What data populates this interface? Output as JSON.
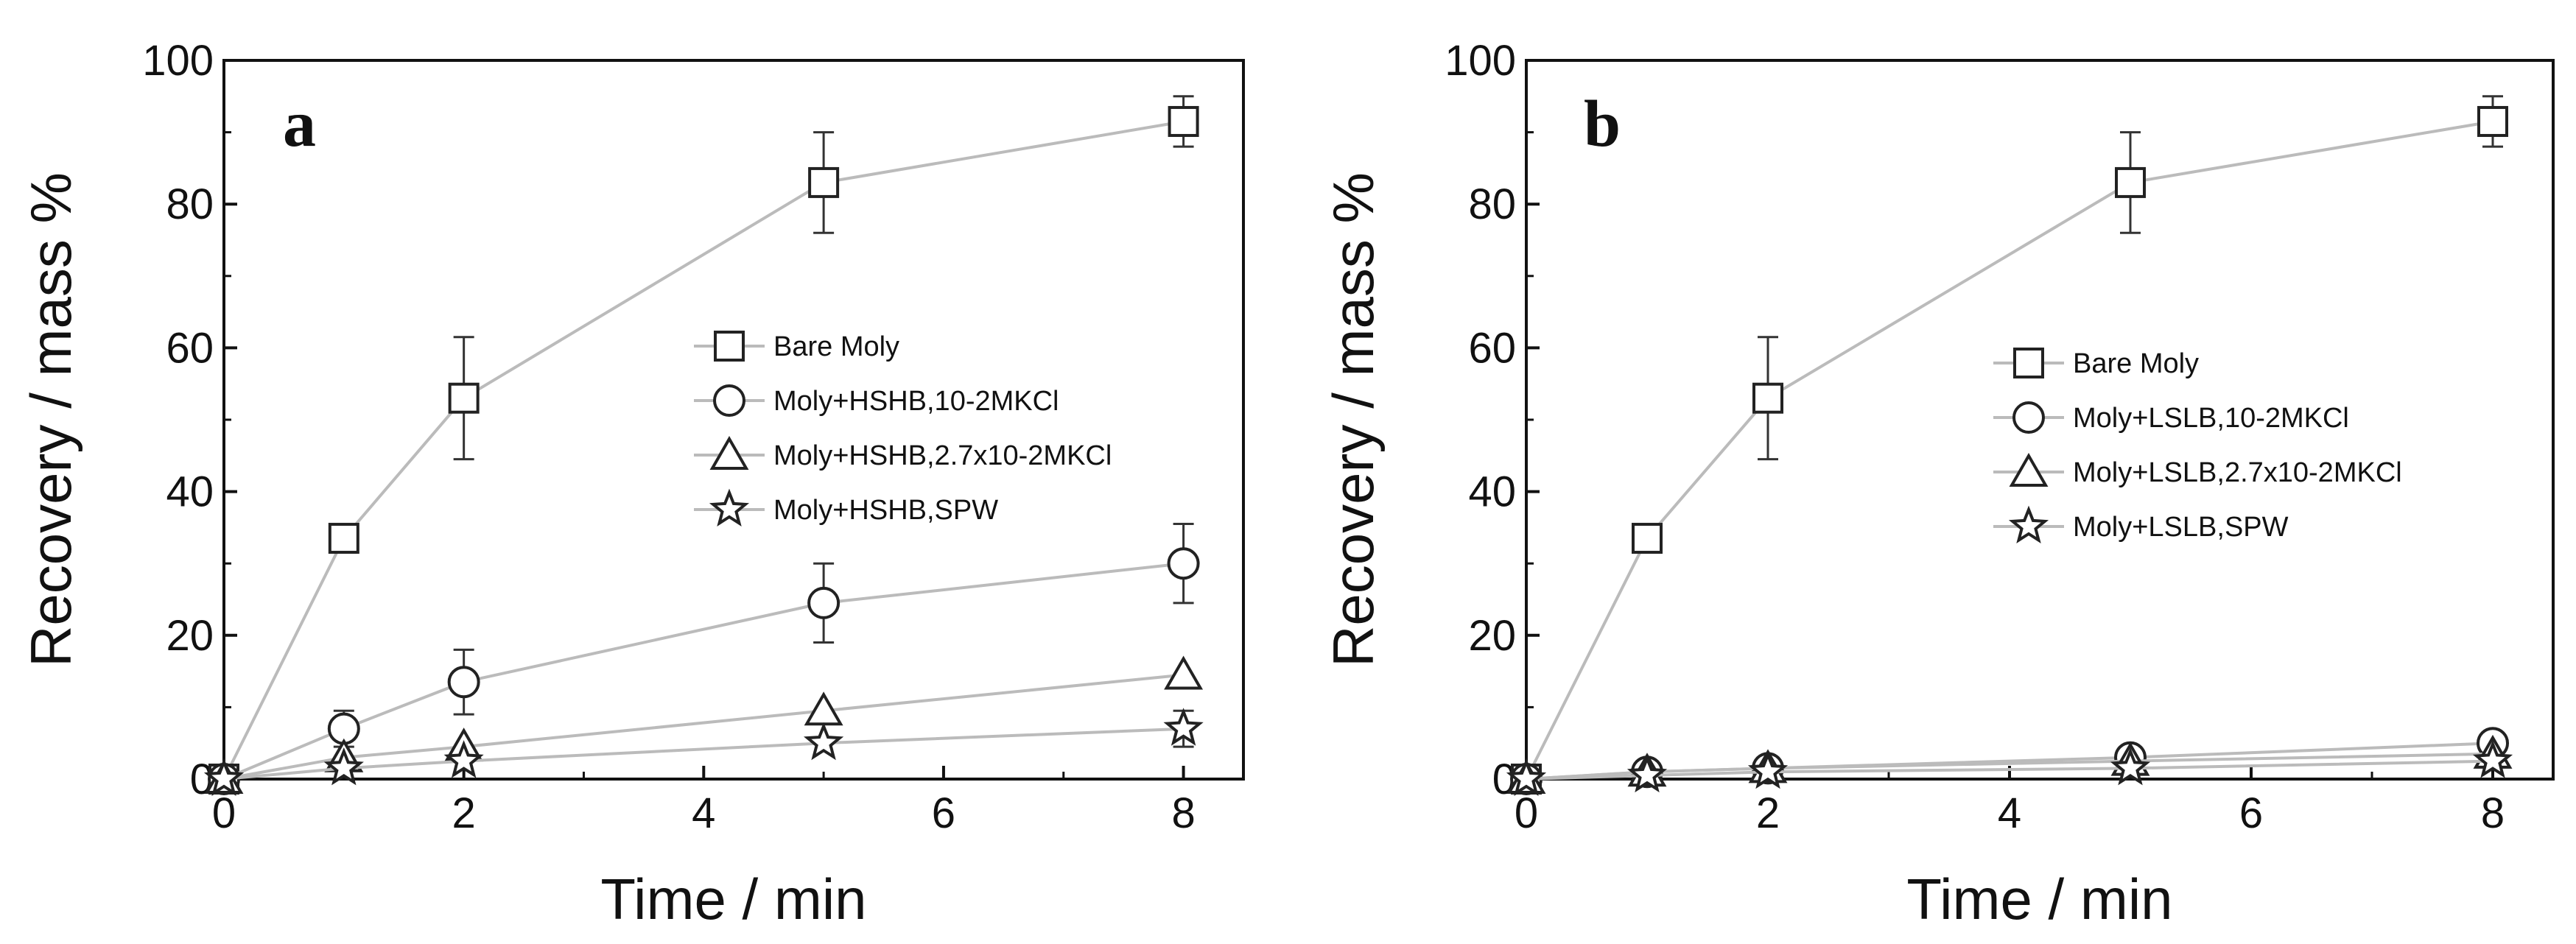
{
  "chart_data": [
    {
      "type": "line",
      "panel_label": "a",
      "xlabel": "Time / min",
      "ylabel": "Recovery / mass %",
      "xlim": [
        0,
        8.5
      ],
      "ylim": [
        0,
        100
      ],
      "xticks": [
        0,
        2,
        4,
        6,
        8
      ],
      "yticks": [
        0,
        20,
        40,
        60,
        80,
        100
      ],
      "legend_position": "center-right",
      "line_color": "#bbbbbb",
      "x": [
        0,
        1,
        2,
        5,
        8
      ],
      "series": [
        {
          "name": "Bare Moly",
          "marker": "square",
          "values": [
            0,
            33.5,
            53,
            83,
            91.5
          ],
          "errors": [
            0,
            0,
            8.5,
            7,
            3.5
          ]
        },
        {
          "name": "Moly+HSHB,10-2MKCl",
          "marker": "circle",
          "values": [
            0,
            7,
            13.5,
            24.5,
            30
          ],
          "errors": [
            0,
            2.5,
            4.5,
            5.5,
            5.5
          ]
        },
        {
          "name": "Moly+HSHB,2.7x10-2MKCl",
          "marker": "triangle",
          "values": [
            0,
            3,
            4.5,
            9.5,
            14.5
          ],
          "errors": [
            0,
            0,
            0,
            0,
            0
          ]
        },
        {
          "name": "Moly+HSHB,SPW",
          "marker": "star",
          "values": [
            0,
            1.5,
            2.5,
            5,
            7
          ],
          "errors": [
            0,
            0,
            0,
            0,
            2.5
          ]
        }
      ]
    },
    {
      "type": "line",
      "panel_label": "b",
      "xlabel": "Time / min",
      "ylabel": "Recovery / mass %",
      "xlim": [
        0,
        8.5
      ],
      "ylim": [
        0,
        100
      ],
      "xticks": [
        0,
        2,
        4,
        6,
        8
      ],
      "yticks": [
        0,
        20,
        40,
        60,
        80,
        100
      ],
      "legend_position": "center-right",
      "line_color": "#bbbbbb",
      "x": [
        0,
        1,
        2,
        5,
        8
      ],
      "series": [
        {
          "name": "Bare Moly",
          "marker": "square",
          "values": [
            0,
            33.5,
            53,
            83,
            91.5
          ],
          "errors": [
            0,
            0,
            8.5,
            7,
            3.5
          ]
        },
        {
          "name": "Moly+LSLB,10-2MKCl",
          "marker": "circle",
          "values": [
            0,
            1,
            1.5,
            3,
            5
          ],
          "errors": [
            0,
            0,
            0,
            0,
            0
          ]
        },
        {
          "name": "Moly+LSLB,2.7x10-2MKCl",
          "marker": "triangle",
          "values": [
            0,
            1,
            1.5,
            2.5,
            3.5
          ],
          "errors": [
            0,
            0,
            0,
            0,
            0
          ]
        },
        {
          "name": "Moly+LSLB,SPW",
          "marker": "star",
          "values": [
            0,
            0.5,
            1,
            1.5,
            2.5
          ],
          "errors": [
            0,
            0,
            0,
            0,
            0
          ]
        }
      ]
    }
  ]
}
